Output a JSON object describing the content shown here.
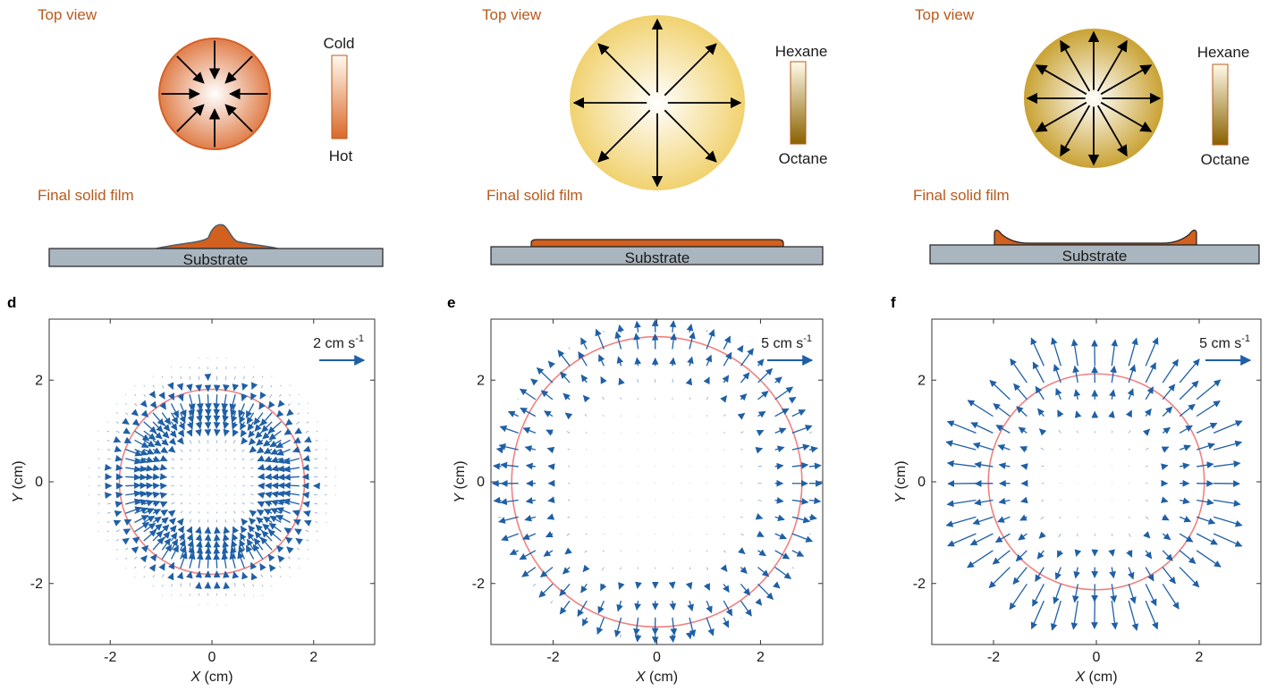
{
  "top": [
    {
      "view_label": "Top view",
      "film_label": "Final solid film",
      "substrate_label": "Substrate",
      "colorbar_top": "Cold",
      "colorbar_bottom": "Hot",
      "flow": "inward",
      "drop_colors": {
        "center": "#ffffff",
        "edge": "#e07e4a",
        "rim": "#d4622a"
      },
      "colorbar_colors": {
        "top": "#fffaf0",
        "bottom": "#d9692a"
      },
      "film_shape": "bump"
    },
    {
      "view_label": "Top view",
      "film_label": "Final solid film",
      "substrate_label": "Substrate",
      "colorbar_top": "Hexane",
      "colorbar_bottom": "Octane",
      "flow": "outward",
      "drop_colors": {
        "center": "#ffffff",
        "edge": "#f1d270",
        "rim": "#f1d270"
      },
      "colorbar_colors": {
        "top": "#fffbe8",
        "bottom": "#8a6200"
      },
      "film_shape": "flat"
    },
    {
      "view_label": "Top view",
      "film_label": "Final solid film",
      "substrate_label": "Substrate",
      "colorbar_top": "Hexane",
      "colorbar_bottom": "Octane",
      "flow": "outward",
      "drop_colors": {
        "center": "#ffffff",
        "edge": "#c9a233",
        "rim": "#c9a233"
      },
      "colorbar_colors": {
        "top": "#fffbe8",
        "bottom": "#8a6200"
      },
      "film_shape": "coffee-ring"
    }
  ],
  "chart_data": [
    {
      "type": "quiver",
      "panel_label": "d",
      "xlabel_var": "X",
      "xlabel_unit": " (cm)",
      "ylabel_var": "Y",
      "ylabel_unit": " (cm)",
      "xticks": [
        -2,
        0,
        2
      ],
      "yticks": [
        2,
        0,
        -2
      ],
      "xlim": [
        -3.2,
        3.2
      ],
      "ylim": [
        -3.2,
        3.2
      ],
      "contact_line_radius": 1.82,
      "scale_label": "2 cm s",
      "scale_exp": "-1",
      "field": "inward, largest near contact line",
      "arrow_color": "#1f5fa6",
      "circle_color": "#f08080"
    },
    {
      "type": "quiver",
      "panel_label": "e",
      "xlabel_var": "X",
      "xlabel_unit": " (cm)",
      "ylabel_var": "Y",
      "ylabel_unit": " (cm)",
      "xticks": [
        -2,
        0,
        2
      ],
      "yticks": [
        2,
        0,
        -2
      ],
      "xlim": [
        -3.2,
        3.2
      ],
      "ylim": [
        -3.2,
        3.2
      ],
      "contact_line_radius": 2.8,
      "scale_label": "5 cm s",
      "scale_exp": "-1",
      "field": "outward, largest near contact line",
      "arrow_color": "#1f5fa6",
      "circle_color": "#f08080"
    },
    {
      "type": "quiver",
      "panel_label": "f",
      "xlabel_var": "X",
      "xlabel_unit": " (cm)",
      "ylabel_var": "Y",
      "ylabel_unit": " (cm)",
      "xticks": [
        -2,
        0,
        2
      ],
      "yticks": [
        2,
        0,
        -2
      ],
      "xlim": [
        -3.2,
        3.2
      ],
      "ylim": [
        -3.2,
        3.2
      ],
      "contact_line_radius": 2.1,
      "scale_label": "5 cm s",
      "scale_exp": "-1",
      "field": "outward, extending beyond contact line",
      "arrow_color": "#1f5fa6",
      "circle_color": "#f08080"
    }
  ]
}
